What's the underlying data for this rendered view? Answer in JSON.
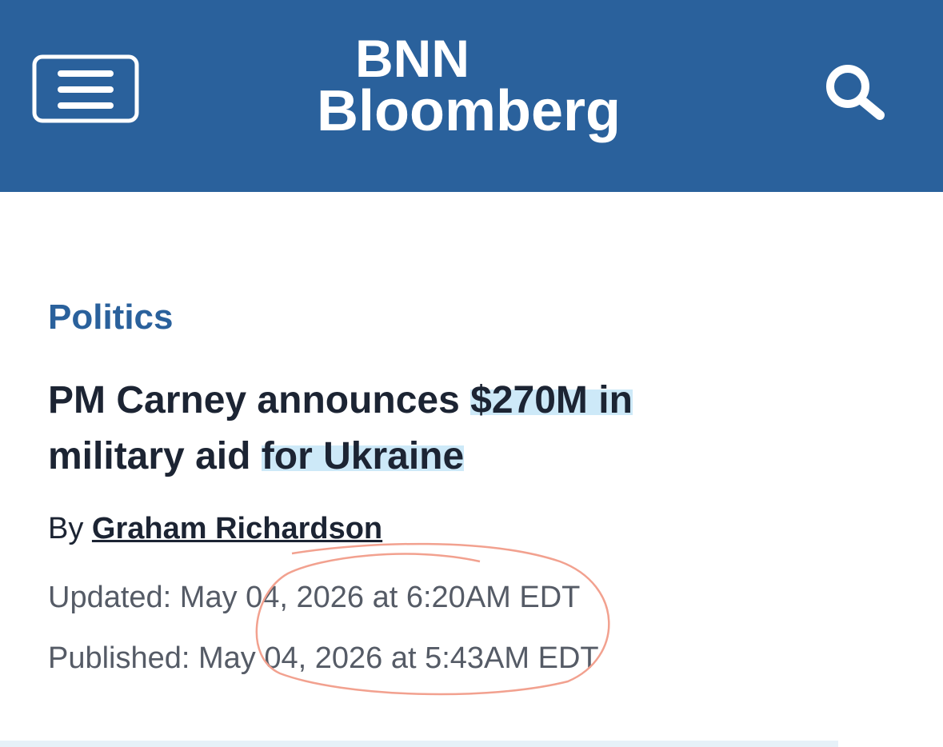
{
  "header": {
    "logo_line1": "BNN",
    "logo_line2": "Bloomberg"
  },
  "article": {
    "category": "Politics",
    "headline_line1_a": "PM Carney announces ",
    "headline_line1_b": "$270M in",
    "headline_line2_a": "military aid ",
    "headline_line2_b": "for Ukraine",
    "byline_prefix": "By",
    "author": "Graham Richardson",
    "updated": "Updated: May 04, 2026 at 6:20AM EDT",
    "published": "Published: May 04, 2026 at 5:43AM EDT"
  }
}
